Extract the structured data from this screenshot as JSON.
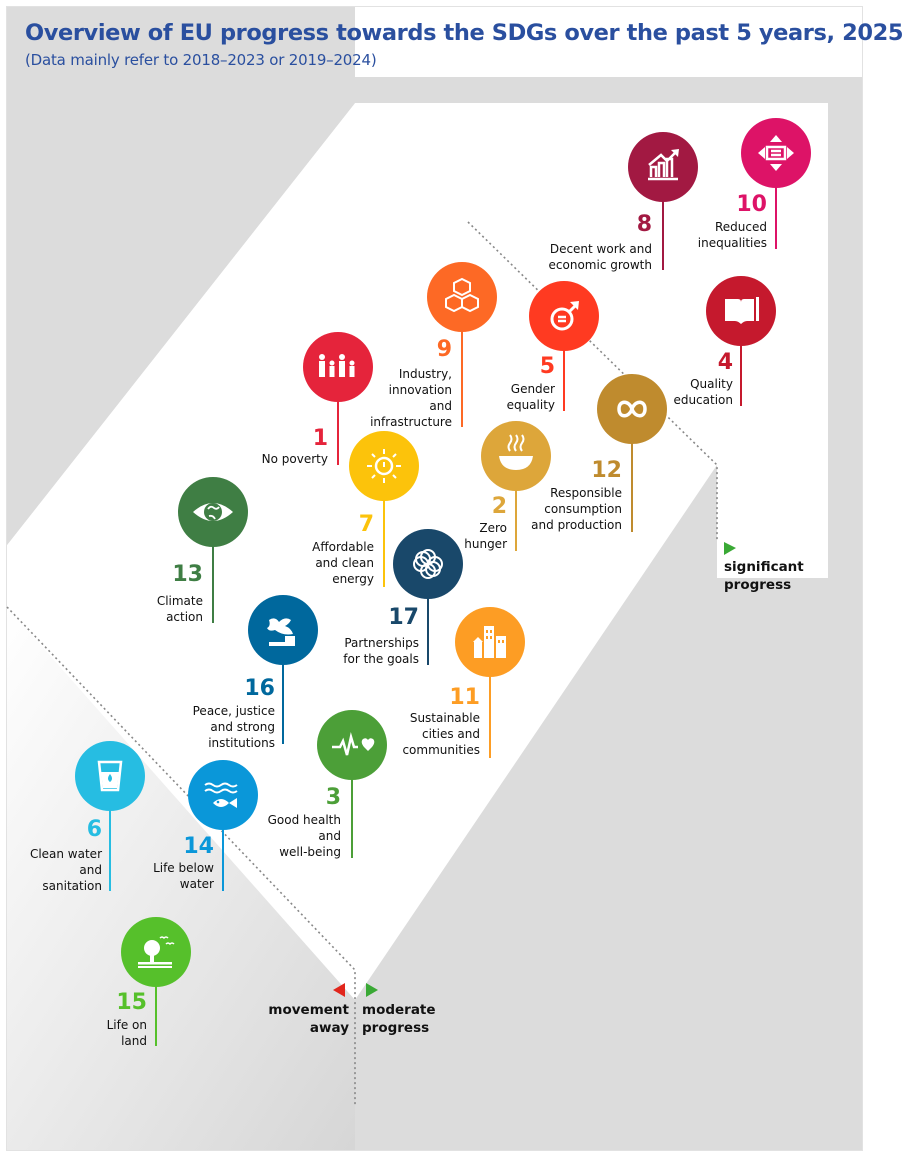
{
  "title": "Overview of EU progress towards the SDGs over the past 5 years, 2025",
  "subtitle": "(Data mainly refer to 2018–2023 or 2019–2024)",
  "legend": {
    "significant": "significant\nprogress",
    "moderate": "moderate\nprogress",
    "away": "movement\naway"
  },
  "colors": {
    "background_grey": "#dcdcdc",
    "white_band": "#ffffff",
    "title_blue": "#2a4f9f",
    "arrow_green": "#3aa935",
    "arrow_red": "#e1261c"
  },
  "goals": [
    {
      "num": "8",
      "label": "Decent work and\neconomic growth",
      "color": "#a21942",
      "icon": "growth-chart-icon"
    },
    {
      "num": "10",
      "label": "Reduced\ninequalities",
      "color": "#dd1367",
      "icon": "equality-arrows-icon"
    },
    {
      "num": "9",
      "label": "Industry,\ninnovation\nand\ninfrastructure",
      "color": "#fd6925",
      "icon": "cubes-icon"
    },
    {
      "num": "5",
      "label": "Gender\nequality",
      "color": "#ff3a21",
      "icon": "gender-icon"
    },
    {
      "num": "4",
      "label": "Quality\neducation",
      "color": "#c5192d",
      "icon": "book-icon"
    },
    {
      "num": "1",
      "label": "No poverty",
      "color": "#e5243b",
      "icon": "family-icon"
    },
    {
      "num": "12",
      "label": "Responsible\nconsumption\nand production",
      "color": "#bf8b2e",
      "icon": "infinity-icon"
    },
    {
      "num": "7",
      "label": "Affordable\nand clean\nenergy",
      "color": "#fcc30b",
      "icon": "sun-power-icon"
    },
    {
      "num": "2",
      "label": "Zero\nhunger",
      "color": "#dda63a",
      "icon": "bowl-icon"
    },
    {
      "num": "13",
      "label": "Climate\naction",
      "color": "#3f7e44",
      "icon": "eye-globe-icon"
    },
    {
      "num": "17",
      "label": "Partnerships\nfor the goals",
      "color": "#19486a",
      "icon": "rings-icon"
    },
    {
      "num": "16",
      "label": "Peace, justice\nand strong\ninstitutions",
      "color": "#00689d",
      "icon": "dove-gavel-icon"
    },
    {
      "num": "11",
      "label": "Sustainable\ncities and\ncommunities",
      "color": "#fd9d24",
      "icon": "city-icon"
    },
    {
      "num": "3",
      "label": "Good health\nand\nwell-being",
      "color": "#4c9f38",
      "icon": "heartbeat-icon"
    },
    {
      "num": "6",
      "label": "Clean water\nand\nsanitation",
      "color": "#26bde2",
      "icon": "water-glass-icon"
    },
    {
      "num": "14",
      "label": "Life below\nwater",
      "color": "#0a97d9",
      "icon": "fish-icon"
    },
    {
      "num": "15",
      "label": "Life on\nland",
      "color": "#56c02b",
      "icon": "tree-icon"
    }
  ]
}
